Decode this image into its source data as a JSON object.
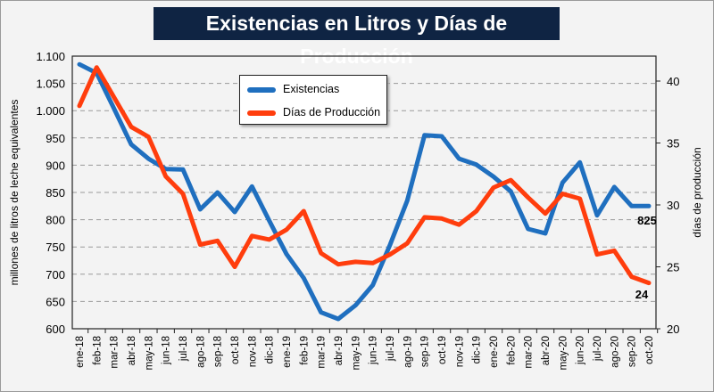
{
  "chart_data": {
    "type": "line",
    "title": "Existencias en Litros y Días de Producción",
    "categories": [
      "ene-18",
      "feb-18",
      "mar-18",
      "abr-18",
      "may-18",
      "jun-18",
      "jul-18",
      "ago-18",
      "sep-18",
      "oct-18",
      "nov-18",
      "dic-18",
      "ene-19",
      "feb-19",
      "mar-19",
      "abr-19",
      "may-19",
      "jun-19",
      "jul-19",
      "ago-19",
      "sep-19",
      "oct-19",
      "nov-19",
      "dic-19",
      "ene-20",
      "feb-20",
      "mar-20",
      "abr-20",
      "may-20",
      "jun-20",
      "jul-20",
      "ago-20",
      "sep-20",
      "oct-20"
    ],
    "series": [
      {
        "name": "Existencias",
        "axis": "left",
        "color": "#1f6fbf",
        "values": [
          1085,
          1069,
          1004,
          938,
          912,
          893,
          892,
          819,
          850,
          814,
          861,
          798,
          737,
          693,
          630,
          618,
          643,
          680,
          754,
          835,
          955,
          953,
          912,
          901,
          879,
          852,
          783,
          775,
          868,
          905,
          808,
          860,
          825,
          825
        ]
      },
      {
        "name": "Días de Producción",
        "axis": "right",
        "color": "#ff3d0d",
        "values": [
          38.0,
          41.1,
          38.7,
          36.3,
          35.5,
          32.3,
          30.9,
          26.8,
          27.1,
          25.0,
          27.5,
          27.2,
          28.0,
          29.5,
          26.1,
          25.2,
          25.4,
          25.3,
          26.0,
          26.9,
          29.0,
          28.9,
          28.4,
          29.5,
          31.4,
          32.0,
          30.6,
          29.3,
          30.9,
          30.5,
          26.0,
          26.3,
          24.2,
          23.7
        ]
      }
    ],
    "ylabel": "millones de litros de leche equivalentes",
    "ylabel_right": "días de producción",
    "ylim": [
      600,
      1100
    ],
    "yticks": [
      "600",
      "650",
      "700",
      "750",
      "800",
      "850",
      "900",
      "950",
      "1.000",
      "1.050",
      "1.100"
    ],
    "ylim_right": [
      20,
      42
    ],
    "yticks_right": [
      "20",
      "25",
      "30",
      "35",
      "40"
    ],
    "grid": "horizontal dashed",
    "legend_position": "top-center",
    "annotations": {
      "last_existencias": "825",
      "last_dias": "24"
    }
  }
}
